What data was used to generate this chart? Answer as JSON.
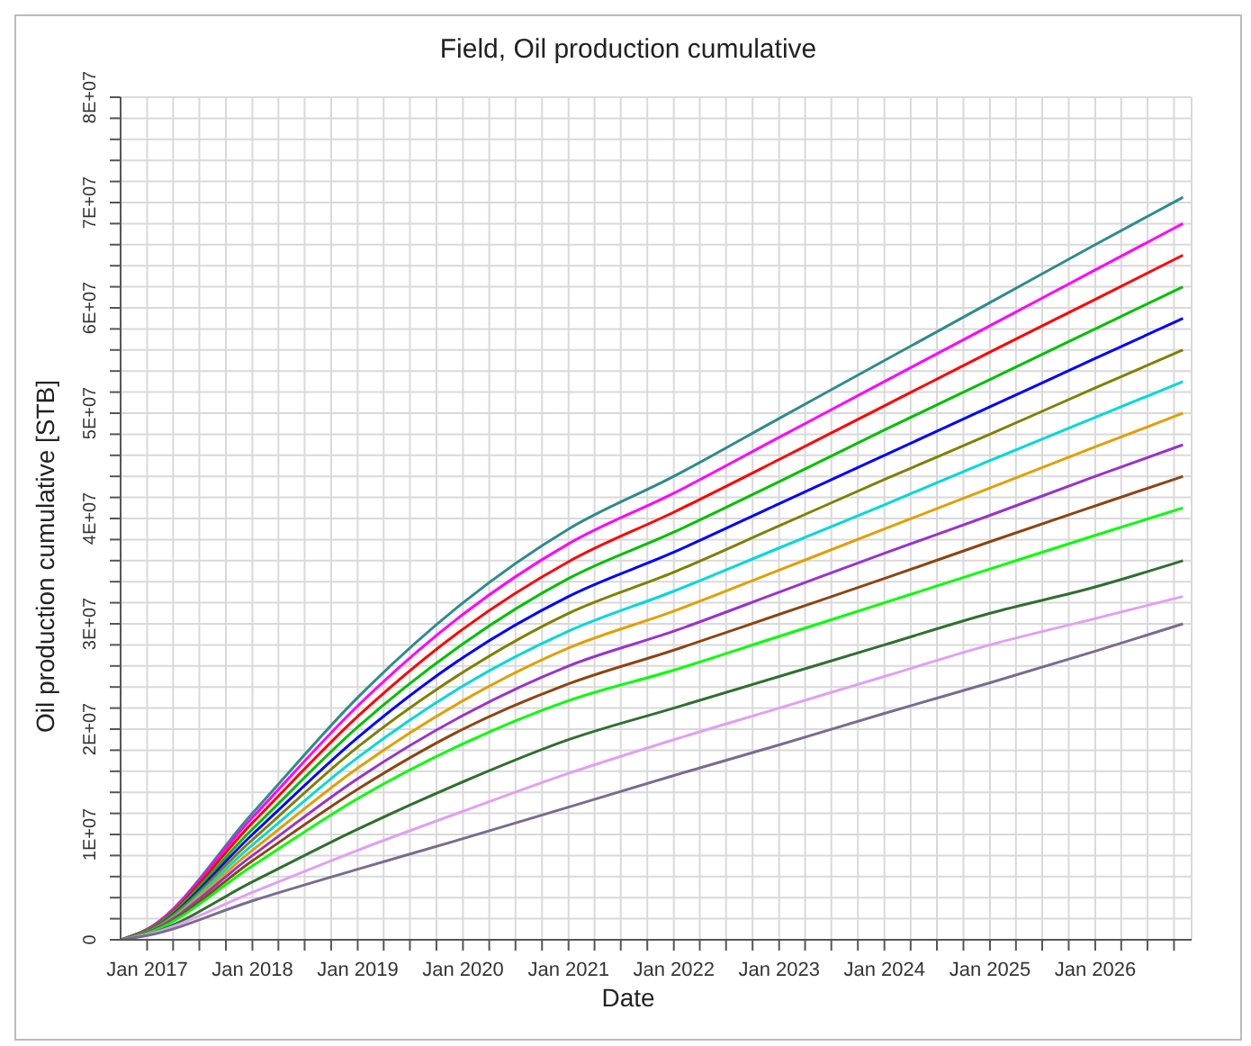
{
  "chart_data": {
    "type": "line",
    "title": "Field, Oil production cumulative",
    "xlabel": "Date",
    "ylabel": "Oil production cumulative [STB]",
    "x": [
      "2016-10",
      "2017-01",
      "2018-01",
      "2019-01",
      "2020-01",
      "2021-01",
      "2022-01",
      "2023-01",
      "2024-01",
      "2025-01",
      "2026-01",
      "2026-11"
    ],
    "series": [
      {
        "color": "#2e8b8b",
        "values": [
          0,
          1000000,
          12000000,
          23000000,
          32000000,
          39000000,
          44000000,
          49500000,
          55000000,
          60500000,
          66000000,
          70500000
        ]
      },
      {
        "color": "#ff00ff",
        "values": [
          0,
          1000000,
          11600000,
          22200000,
          30900000,
          37600000,
          42400000,
          47700000,
          53000000,
          58300000,
          63600000,
          68000000
        ]
      },
      {
        "color": "#ff0000",
        "values": [
          0,
          900000,
          11100000,
          21200000,
          29500000,
          35900000,
          40600000,
          45600000,
          50700000,
          55800000,
          60800000,
          65000000
        ]
      },
      {
        "color": "#00c000",
        "values": [
          0,
          900000,
          10500000,
          20200000,
          28100000,
          34300000,
          38700000,
          43500000,
          48400000,
          53200000,
          58000000,
          62000000
        ]
      },
      {
        "color": "#0000ff",
        "values": [
          0,
          800000,
          10000000,
          19200000,
          26800000,
          32600000,
          36800000,
          41400000,
          46000000,
          50600000,
          55200000,
          59000000
        ]
      },
      {
        "color": "#808000",
        "values": [
          0,
          800000,
          9500000,
          18300000,
          25400000,
          31000000,
          34900000,
          39300000,
          43700000,
          48000000,
          52400000,
          56000000
        ]
      },
      {
        "color": "#00d8d8",
        "values": [
          0,
          700000,
          9000000,
          17300000,
          24100000,
          29300000,
          33100000,
          37200000,
          41300000,
          45500000,
          49600000,
          53000000
        ]
      },
      {
        "color": "#e0a000",
        "values": [
          0,
          700000,
          8500000,
          16300000,
          22700000,
          27700000,
          31200000,
          35100000,
          39000000,
          42900000,
          46800000,
          50000000
        ]
      },
      {
        "color": "#9932cc",
        "values": [
          0,
          700000,
          8000000,
          15300000,
          21300000,
          26000000,
          29300000,
          33000000,
          36700000,
          40300000,
          44000000,
          47000000
        ]
      },
      {
        "color": "#8b4513",
        "values": [
          0,
          600000,
          7500000,
          14300000,
          20000000,
          24300000,
          27500000,
          30900000,
          34300000,
          37800000,
          41200000,
          44000000
        ]
      },
      {
        "color": "#00ff00",
        "values": [
          0,
          600000,
          7000000,
          13400000,
          18600000,
          22700000,
          25600000,
          28800000,
          32000000,
          35200000,
          38400000,
          41000000
        ]
      },
      {
        "color": "#2f6f2f",
        "values": [
          0,
          500000,
          5500000,
          10500000,
          15000000,
          19000000,
          22000000,
          25000000,
          28000000,
          31000000,
          33500000,
          36000000
        ]
      },
      {
        "color": "#e0a0f0",
        "values": [
          0,
          500000,
          4500000,
          8500000,
          12200000,
          15800000,
          19000000,
          22000000,
          25000000,
          28000000,
          30500000,
          32600000
        ]
      },
      {
        "color": "#7a6a90",
        "values": [
          0,
          400000,
          3700000,
          6700000,
          9600000,
          12600000,
          15600000,
          18500000,
          21500000,
          24400000,
          27400000,
          30000000
        ]
      }
    ],
    "xlim": [
      "2016-10",
      "2026-12"
    ],
    "xticks": [
      {
        "value": "2017-01",
        "label": "Jan 2017"
      },
      {
        "value": "2017-04",
        "label": null
      },
      {
        "value": "2017-07",
        "label": null
      },
      {
        "value": "2017-10",
        "label": null
      },
      {
        "value": "2018-01",
        "label": "Jan 2018"
      },
      {
        "value": "2018-04",
        "label": null
      },
      {
        "value": "2018-07",
        "label": null
      },
      {
        "value": "2018-10",
        "label": null
      },
      {
        "value": "2019-01",
        "label": "Jan 2019"
      },
      {
        "value": "2019-04",
        "label": null
      },
      {
        "value": "2019-07",
        "label": null
      },
      {
        "value": "2019-10",
        "label": null
      },
      {
        "value": "2020-01",
        "label": "Jan 2020"
      },
      {
        "value": "2020-04",
        "label": null
      },
      {
        "value": "2020-07",
        "label": null
      },
      {
        "value": "2020-10",
        "label": null
      },
      {
        "value": "2021-01",
        "label": "Jan 2021"
      },
      {
        "value": "2021-04",
        "label": null
      },
      {
        "value": "2021-07",
        "label": null
      },
      {
        "value": "2021-10",
        "label": null
      },
      {
        "value": "2022-01",
        "label": "Jan 2022"
      },
      {
        "value": "2022-04",
        "label": null
      },
      {
        "value": "2022-07",
        "label": null
      },
      {
        "value": "2022-10",
        "label": null
      },
      {
        "value": "2023-01",
        "label": "Jan 2023"
      },
      {
        "value": "2023-04",
        "label": null
      },
      {
        "value": "2023-07",
        "label": null
      },
      {
        "value": "2023-10",
        "label": null
      },
      {
        "value": "2024-01",
        "label": "Jan 2024"
      },
      {
        "value": "2024-04",
        "label": null
      },
      {
        "value": "2024-07",
        "label": null
      },
      {
        "value": "2024-10",
        "label": null
      },
      {
        "value": "2025-01",
        "label": "Jan 2025"
      },
      {
        "value": "2025-04",
        "label": null
      },
      {
        "value": "2025-07",
        "label": null
      },
      {
        "value": "2025-10",
        "label": null
      },
      {
        "value": "2026-01",
        "label": "Jan 2026"
      },
      {
        "value": "2026-04",
        "label": null
      },
      {
        "value": "2026-07",
        "label": null
      },
      {
        "value": "2026-10",
        "label": null
      }
    ],
    "ylim": [
      0,
      80000000
    ],
    "yticks": [
      0,
      {
        "value": 2000000,
        "label": null
      },
      {
        "value": 4000000,
        "label": null
      },
      {
        "value": 6000000,
        "label": null
      },
      {
        "value": 8000000,
        "label": null
      },
      {
        "value": 10000000,
        "label": "1E+07"
      },
      {
        "value": 12000000,
        "label": null
      },
      {
        "value": 14000000,
        "label": null
      },
      {
        "value": 16000000,
        "label": null
      },
      {
        "value": 18000000,
        "label": null
      },
      {
        "value": 20000000,
        "label": "2E+07"
      },
      {
        "value": 22000000,
        "label": null
      },
      {
        "value": 24000000,
        "label": null
      },
      {
        "value": 26000000,
        "label": null
      },
      {
        "value": 28000000,
        "label": null
      },
      {
        "value": 30000000,
        "label": "3E+07"
      },
      {
        "value": 32000000,
        "label": null
      },
      {
        "value": 34000000,
        "label": null
      },
      {
        "value": 36000000,
        "label": null
      },
      {
        "value": 38000000,
        "label": null
      },
      {
        "value": 40000000,
        "label": "4E+07"
      },
      {
        "value": 42000000,
        "label": null
      },
      {
        "value": 44000000,
        "label": null
      },
      {
        "value": 46000000,
        "label": null
      },
      {
        "value": 48000000,
        "label": null
      },
      {
        "value": 50000000,
        "label": "5E+07"
      },
      {
        "value": 52000000,
        "label": null
      },
      {
        "value": 54000000,
        "label": null
      },
      {
        "value": 56000000,
        "label": null
      },
      {
        "value": 58000000,
        "label": null
      },
      {
        "value": 60000000,
        "label": "6E+07"
      },
      {
        "value": 62000000,
        "label": null
      },
      {
        "value": 64000000,
        "label": null
      },
      {
        "value": 66000000,
        "label": null
      },
      {
        "value": 68000000,
        "label": null
      },
      {
        "value": 70000000,
        "label": "7E+07"
      },
      {
        "value": 72000000,
        "label": null
      },
      {
        "value": 74000000,
        "label": null
      },
      {
        "value": 76000000,
        "label": null
      },
      {
        "value": 78000000,
        "label": null
      },
      {
        "value": 80000000,
        "label": "8E+07"
      }
    ],
    "grid": true,
    "line_style": "solid"
  }
}
